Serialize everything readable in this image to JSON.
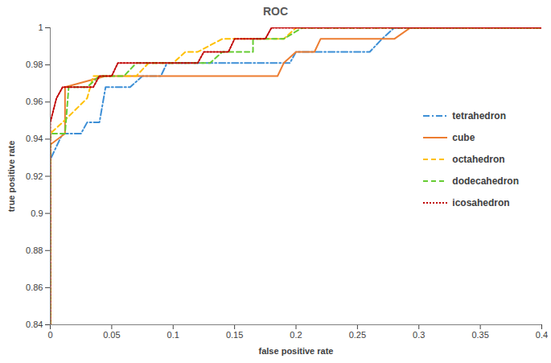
{
  "chart_data": {
    "type": "line",
    "title": "ROC",
    "x_label": "false positive rate",
    "y_label": "true positive rate",
    "xlim": [
      0,
      0.4
    ],
    "xticks": [
      0,
      0.05,
      0.1,
      0.15,
      0.2,
      0.25,
      0.3,
      0.35,
      0.4
    ],
    "ylim": [
      0.84,
      1
    ],
    "yticks": [
      0.84,
      0.86,
      0.88,
      0.9,
      0.92,
      0.94,
      0.96,
      0.98,
      1
    ],
    "grid": false,
    "legend": "right",
    "series": [
      {
        "name": "tetrahedron",
        "color": "#3d8fd6",
        "line_style": "dashdot",
        "x": [
          0,
          0,
          0.01,
          0.025,
          0.03,
          0.04,
          0.045,
          0.065,
          0.075,
          0.09,
          0.095,
          0.195,
          0.2,
          0.26,
          0.27,
          0.28,
          0.4
        ],
        "values": [
          0.84,
          0.929,
          0.943,
          0.943,
          0.949,
          0.949,
          0.968,
          0.968,
          0.974,
          0.974,
          0.981,
          0.981,
          0.987,
          0.987,
          0.994,
          1,
          1
        ]
      },
      {
        "name": "cube",
        "color": "#ed7d31",
        "line_style": "solid",
        "x": [
          0,
          0,
          0.012,
          0.012,
          0.045,
          0.185,
          0.19,
          0.2,
          0.215,
          0.22,
          0.28,
          0.293,
          0.4
        ],
        "values": [
          0.84,
          0.937,
          0.943,
          0.968,
          0.974,
          0.974,
          0.981,
          0.987,
          0.987,
          0.994,
          0.994,
          1,
          1
        ]
      },
      {
        "name": "octahedron",
        "color": "#ffc000",
        "line_style": "dashed",
        "x": [
          0,
          0,
          0.01,
          0.03,
          0.035,
          0.07,
          0.08,
          0.1,
          0.11,
          0.12,
          0.14,
          0.19,
          0.2,
          0.4
        ],
        "values": [
          0.84,
          0.943,
          0.949,
          0.962,
          0.974,
          0.974,
          0.981,
          0.981,
          0.987,
          0.987,
          0.994,
          0.994,
          1,
          1
        ]
      },
      {
        "name": "dodecahedron",
        "color": "#66cc33",
        "line_style": "dashed",
        "x": [
          0,
          0,
          0.012,
          0.015,
          0.03,
          0.04,
          0.06,
          0.07,
          0.13,
          0.14,
          0.165,
          0.165,
          0.19,
          0.205,
          0.4
        ],
        "values": [
          0.84,
          0.943,
          0.943,
          0.968,
          0.968,
          0.974,
          0.974,
          0.981,
          0.981,
          0.987,
          0.987,
          0.994,
          0.994,
          1,
          1
        ]
      },
      {
        "name": "icosahedron",
        "color": "#c00000",
        "line_style": "dotted",
        "x": [
          0,
          0,
          0.005,
          0.01,
          0.035,
          0.04,
          0.05,
          0.055,
          0.12,
          0.125,
          0.145,
          0.15,
          0.175,
          0.18,
          0.4
        ],
        "values": [
          0.84,
          0.949,
          0.962,
          0.968,
          0.968,
          0.974,
          0.974,
          0.981,
          0.981,
          0.987,
          0.987,
          0.994,
          0.994,
          1,
          1
        ]
      }
    ]
  }
}
